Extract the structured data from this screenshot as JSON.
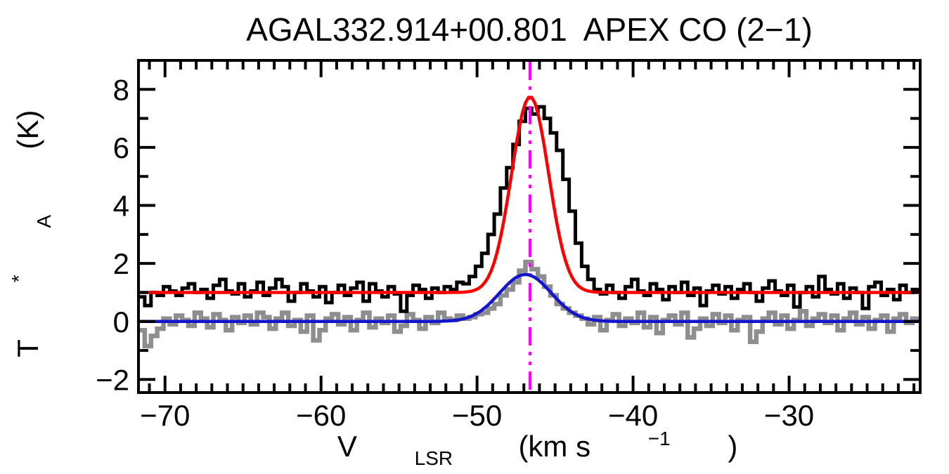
{
  "figure": {
    "title": "AGAL332.914+00.801  APEX CO (2−1)",
    "xlabel": {
      "main": "V",
      "sub": "LSR",
      "mid": " (km s",
      "sup": "−1",
      "end": ")"
    },
    "ylabel": {
      "main": "T",
      "sup": "*",
      "sub": "A",
      "end": " (K)"
    }
  },
  "chart_data": {
    "type": "line",
    "title": "AGAL332.914+00.801  APEX CO (2−1)",
    "xlabel": "V_LSR (km s^-1)",
    "ylabel": "T_A^* (K)",
    "x_axis": {
      "range": [
        -71.7,
        -21.6
      ],
      "major_ticks": [
        -70,
        -60,
        -50,
        -40,
        -30
      ],
      "major_tick_labels": [
        "−70",
        "−60",
        "−50",
        "−40",
        "−30"
      ],
      "minor_tick_step": 1
    },
    "y_axis": {
      "range": [
        -2.45,
        9.0
      ],
      "major_ticks": [
        -2,
        0,
        2,
        4,
        6,
        8
      ],
      "major_tick_labels": [
        "−2",
        "0",
        "2",
        "4",
        "6",
        "8"
      ],
      "minor_tick_step": 1
    },
    "channel_width_kms": 0.4,
    "v_start": -71.5,
    "series": [
      {
        "name": "spectrum-black",
        "style": "histogram",
        "color": "#000000",
        "line_width": 5,
        "baseline": 1.0,
        "values": [
          0.85,
          0.55,
          1.0,
          0.9,
          1.2,
          1.05,
          0.9,
          1.15,
          1.3,
          1.0,
          1.1,
          0.8,
          1.25,
          1.45,
          1.05,
          0.95,
          1.3,
          0.85,
          1.05,
          1.35,
          0.9,
          1.15,
          1.45,
          1.2,
          0.7,
          1.0,
          1.3,
          1.05,
          0.85,
          1.2,
          0.65,
          1.0,
          1.25,
          0.9,
          1.15,
          1.35,
          0.7,
          1.3,
          1.05,
          0.85,
          1.2,
          0.95,
          0.35,
          0.9,
          1.25,
          1.1,
          0.8,
          1.15,
          1.0,
          1.2,
          1.1,
          1.35,
          1.3,
          1.55,
          1.9,
          2.35,
          3.0,
          3.7,
          4.6,
          5.3,
          6.1,
          6.9,
          7.35,
          7.15,
          7.4,
          7.0,
          6.5,
          5.9,
          4.9,
          3.8,
          2.7,
          1.9,
          1.45,
          1.1,
          0.95,
          1.25,
          1.0,
          0.8,
          1.2,
          1.45,
          1.05,
          0.9,
          1.3,
          1.1,
          0.75,
          1.2,
          1.0,
          1.35,
          0.9,
          1.15,
          0.55,
          1.05,
          1.25,
          0.95,
          1.2,
          0.8,
          1.1,
          1.3,
          1.0,
          0.7,
          1.15,
          1.4,
          1.05,
          0.9,
          1.25,
          0.5,
          1.0,
          1.2,
          0.85,
          1.55,
          1.1,
          0.95,
          1.3,
          0.8,
          1.15,
          1.0,
          0.45,
          1.2,
          1.35,
          0.9,
          1.1,
          0.75,
          1.25,
          1.0,
          1.1
        ]
      },
      {
        "name": "spectrum-gray",
        "style": "histogram",
        "color": "#8e8e8e",
        "line_width": 6.5,
        "baseline": 0.0,
        "values": [
          -0.3,
          -0.85,
          -0.5,
          -0.25,
          0.1,
          -0.1,
          0.2,
          0.05,
          -0.15,
          0.3,
          0.1,
          -0.2,
          0.25,
          0.05,
          -0.3,
          0.15,
          -0.05,
          0.2,
          -0.1,
          0.3,
          0.15,
          -0.25,
          0.1,
          0.3,
          -0.15,
          0.05,
          -0.35,
          0.2,
          -0.65,
          -0.3,
          0.1,
          0.25,
          -0.1,
          0.15,
          -0.3,
          0.05,
          0.3,
          -0.2,
          0.1,
          -0.05,
          0.2,
          -0.35,
          -0.15,
          0.25,
          0.05,
          -0.25,
          0.15,
          -0.05,
          0.3,
          0.1,
          0.05,
          0.2,
          0.1,
          0.15,
          0.25,
          0.3,
          0.45,
          0.6,
          0.9,
          1.1,
          1.35,
          1.75,
          2.05,
          1.8,
          1.55,
          1.2,
          0.9,
          0.6,
          0.45,
          0.3,
          0.2,
          0.1,
          -0.1,
          0.15,
          -0.3,
          0.05,
          0.25,
          -0.15,
          0.1,
          -0.05,
          0.3,
          -0.2,
          0.15,
          -0.4,
          0.05,
          0.2,
          -0.1,
          0.3,
          -0.55,
          -0.25,
          0.1,
          -0.15,
          0.25,
          -0.05,
          0.2,
          -0.3,
          0.05,
          0.15,
          -0.7,
          -0.35,
          0.1,
          0.3,
          -0.1,
          0.2,
          -0.25,
          0.05,
          0.35,
          -0.15,
          0.1,
          0.25,
          -0.05,
          0.2,
          -0.3,
          0.1,
          0.3,
          -0.1,
          0.15,
          -0.25,
          0.05,
          0.2,
          -0.35,
          0.1,
          0.25,
          -0.05,
          0.1
        ]
      },
      {
        "name": "gaussian-fit-red",
        "style": "gaussian",
        "color": "#fe0000",
        "line_width": 4.5,
        "baseline": 1.0,
        "amplitude": 6.75,
        "center": -46.6,
        "fwhm": 2.8
      },
      {
        "name": "gaussian-fit-blue",
        "style": "gaussian",
        "color": "#1414cd",
        "line_width": 4.5,
        "baseline": 0.0,
        "amplitude": 1.62,
        "center": -46.9,
        "fwhm": 3.9
      }
    ],
    "marker_line": {
      "x": -46.6,
      "color": "#ff00ff",
      "style": "dash-dot-dot",
      "line_width": 4.2
    }
  }
}
